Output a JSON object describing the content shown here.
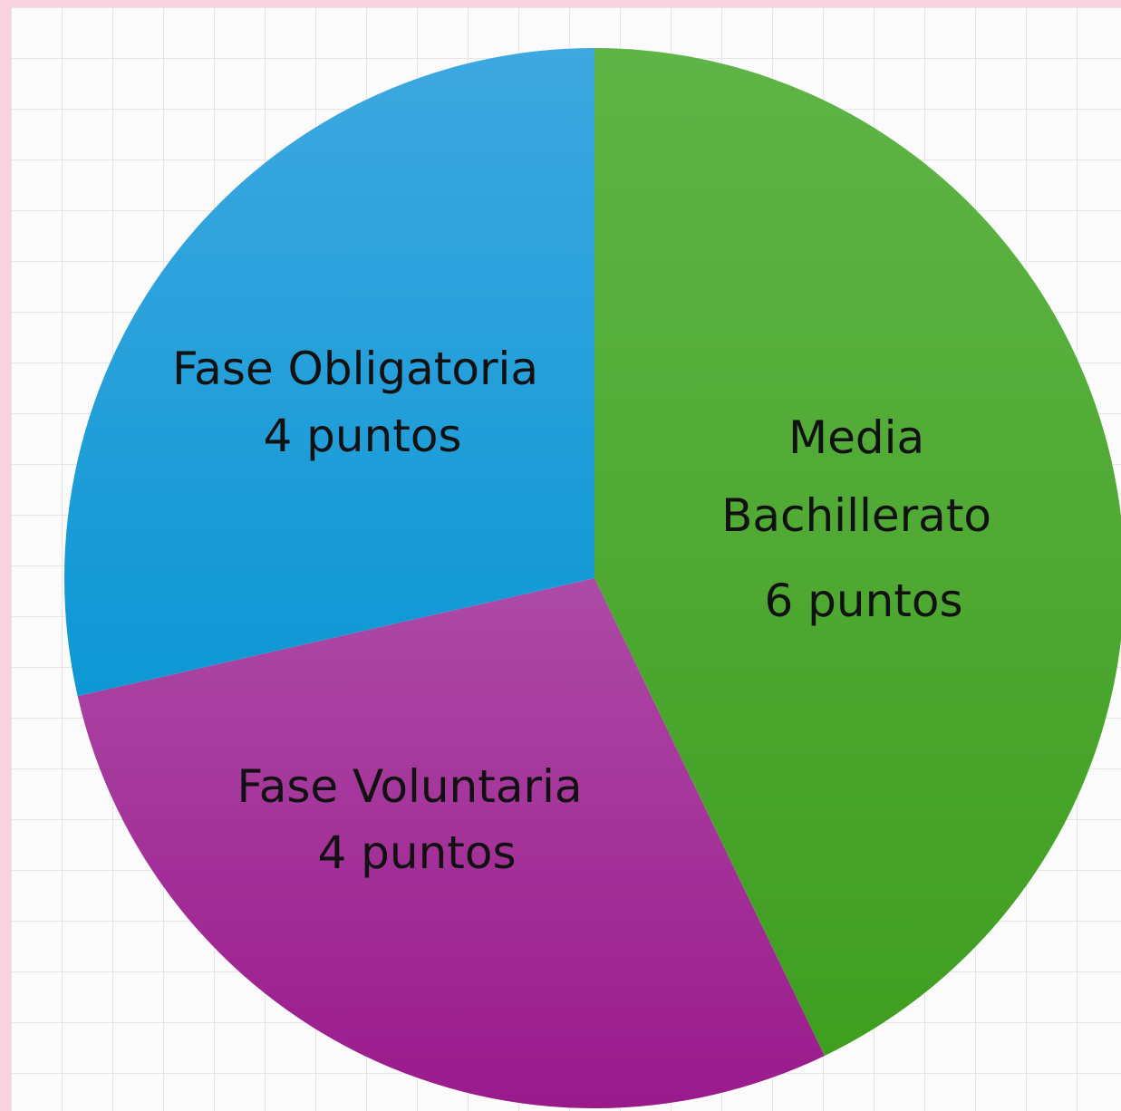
{
  "chart_data": {
    "type": "pie",
    "title": "",
    "start_angle_deg": 0,
    "direction": "clockwise",
    "slices": [
      {
        "id": "media",
        "label_lines": [
          "Media",
          "Bachillerato",
          "6 puntos"
        ],
        "value": 6,
        "color": "#4caf35"
      },
      {
        "id": "voluntaria",
        "label_lines": [
          "Fase Voluntaria",
          "4 puntos"
        ],
        "value": 4,
        "color": "#a3249a"
      },
      {
        "id": "obligatoria",
        "label_lines": [
          "Fase Obligatoria",
          "4 puntos"
        ],
        "value": 4,
        "color": "#17a0dc"
      }
    ]
  }
}
